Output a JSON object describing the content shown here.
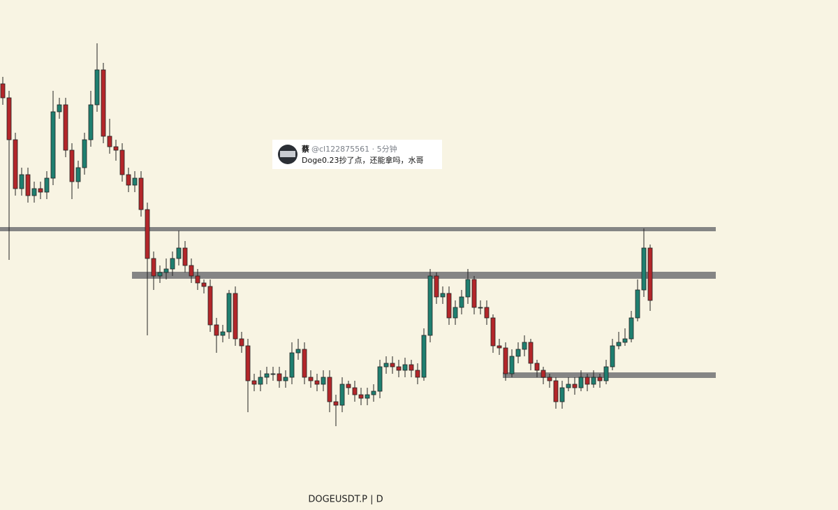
{
  "chart_data": {
    "type": "candlestick",
    "title": "DOGEUSDT.P | D",
    "ylim": [
      0,
      730
    ],
    "up_color": "#1f7f70",
    "down_color": "#b3262a",
    "level_color": "#858585",
    "open": [
      610,
      590,
      530,
      460,
      480,
      450,
      460,
      455,
      475,
      570,
      580,
      515,
      470,
      490,
      530,
      580,
      630,
      535,
      520,
      515,
      480,
      465,
      475,
      430,
      360,
      335,
      340,
      345,
      360,
      375,
      350,
      335,
      325,
      320,
      265,
      250,
      255,
      310,
      245,
      235,
      185,
      180,
      190,
      195,
      195,
      185,
      190,
      225,
      230,
      190,
      185,
      180,
      190,
      155,
      150,
      180,
      175,
      165,
      160,
      165,
      170,
      205,
      210,
      205,
      200,
      208,
      200,
      190,
      250,
      335,
      305,
      310,
      275,
      290,
      305,
      330,
      290,
      290,
      275,
      235,
      232,
      195,
      220,
      230,
      240,
      210,
      200,
      190,
      185,
      155,
      175,
      180,
      175,
      190,
      180,
      190,
      185,
      205,
      235,
      240,
      245,
      275,
      315,
      375
    ],
    "high": [
      620,
      600,
      540,
      490,
      490,
      470,
      470,
      485,
      600,
      590,
      590,
      525,
      500,
      540,
      600,
      668,
      640,
      560,
      530,
      525,
      490,
      485,
      485,
      440,
      370,
      350,
      360,
      370,
      400,
      385,
      360,
      345,
      330,
      330,
      275,
      265,
      315,
      320,
      255,
      245,
      195,
      200,
      205,
      205,
      205,
      200,
      240,
      245,
      240,
      200,
      195,
      200,
      200,
      165,
      190,
      185,
      185,
      175,
      175,
      180,
      215,
      220,
      220,
      215,
      218,
      215,
      210,
      260,
      345,
      340,
      320,
      320,
      300,
      315,
      345,
      335,
      300,
      300,
      280,
      245,
      240,
      230,
      240,
      250,
      245,
      215,
      205,
      195,
      190,
      185,
      190,
      190,
      200,
      195,
      200,
      195,
      215,
      245,
      255,
      260,
      285,
      330,
      403,
      380
    ],
    "low": [
      580,
      358,
      450,
      450,
      440,
      440,
      445,
      445,
      465,
      560,
      505,
      445,
      460,
      480,
      520,
      570,
      525,
      510,
      500,
      470,
      455,
      455,
      420,
      250,
      315,
      325,
      330,
      335,
      350,
      340,
      325,
      315,
      310,
      255,
      225,
      240,
      245,
      235,
      225,
      140,
      170,
      170,
      180,
      185,
      175,
      175,
      180,
      215,
      180,
      175,
      170,
      170,
      140,
      120,
      140,
      165,
      155,
      150,
      150,
      155,
      160,
      195,
      195,
      190,
      190,
      190,
      180,
      185,
      240,
      295,
      295,
      265,
      265,
      280,
      295,
      280,
      280,
      265,
      225,
      222,
      185,
      190,
      210,
      220,
      200,
      190,
      180,
      175,
      145,
      145,
      170,
      165,
      170,
      170,
      175,
      175,
      180,
      200,
      230,
      235,
      240,
      270,
      305,
      285
    ],
    "close": [
      590,
      530,
      460,
      480,
      450,
      460,
      455,
      475,
      570,
      580,
      515,
      470,
      490,
      530,
      580,
      630,
      535,
      520,
      515,
      480,
      465,
      475,
      430,
      360,
      335,
      340,
      345,
      360,
      375,
      350,
      335,
      325,
      320,
      265,
      250,
      255,
      310,
      245,
      235,
      185,
      180,
      190,
      195,
      195,
      185,
      190,
      225,
      230,
      190,
      185,
      180,
      190,
      155,
      150,
      180,
      175,
      165,
      160,
      165,
      170,
      205,
      210,
      205,
      200,
      208,
      200,
      190,
      250,
      335,
      305,
      310,
      275,
      290,
      305,
      330,
      290,
      290,
      275,
      235,
      232,
      195,
      220,
      230,
      240,
      210,
      200,
      190,
      185,
      155,
      175,
      180,
      175,
      190,
      180,
      190,
      185,
      205,
      235,
      240,
      245,
      275,
      315,
      375,
      300
    ],
    "levels": [
      {
        "value": 402,
        "start": 0
      },
      {
        "value": 336,
        "start": 21
      },
      {
        "value": 193,
        "start": 80
      }
    ]
  },
  "comment": {
    "name": "蔡",
    "handle": "@cl122875561 · 5分钟",
    "text": "Doge0.23抄了点，还能拿吗，水哥"
  }
}
